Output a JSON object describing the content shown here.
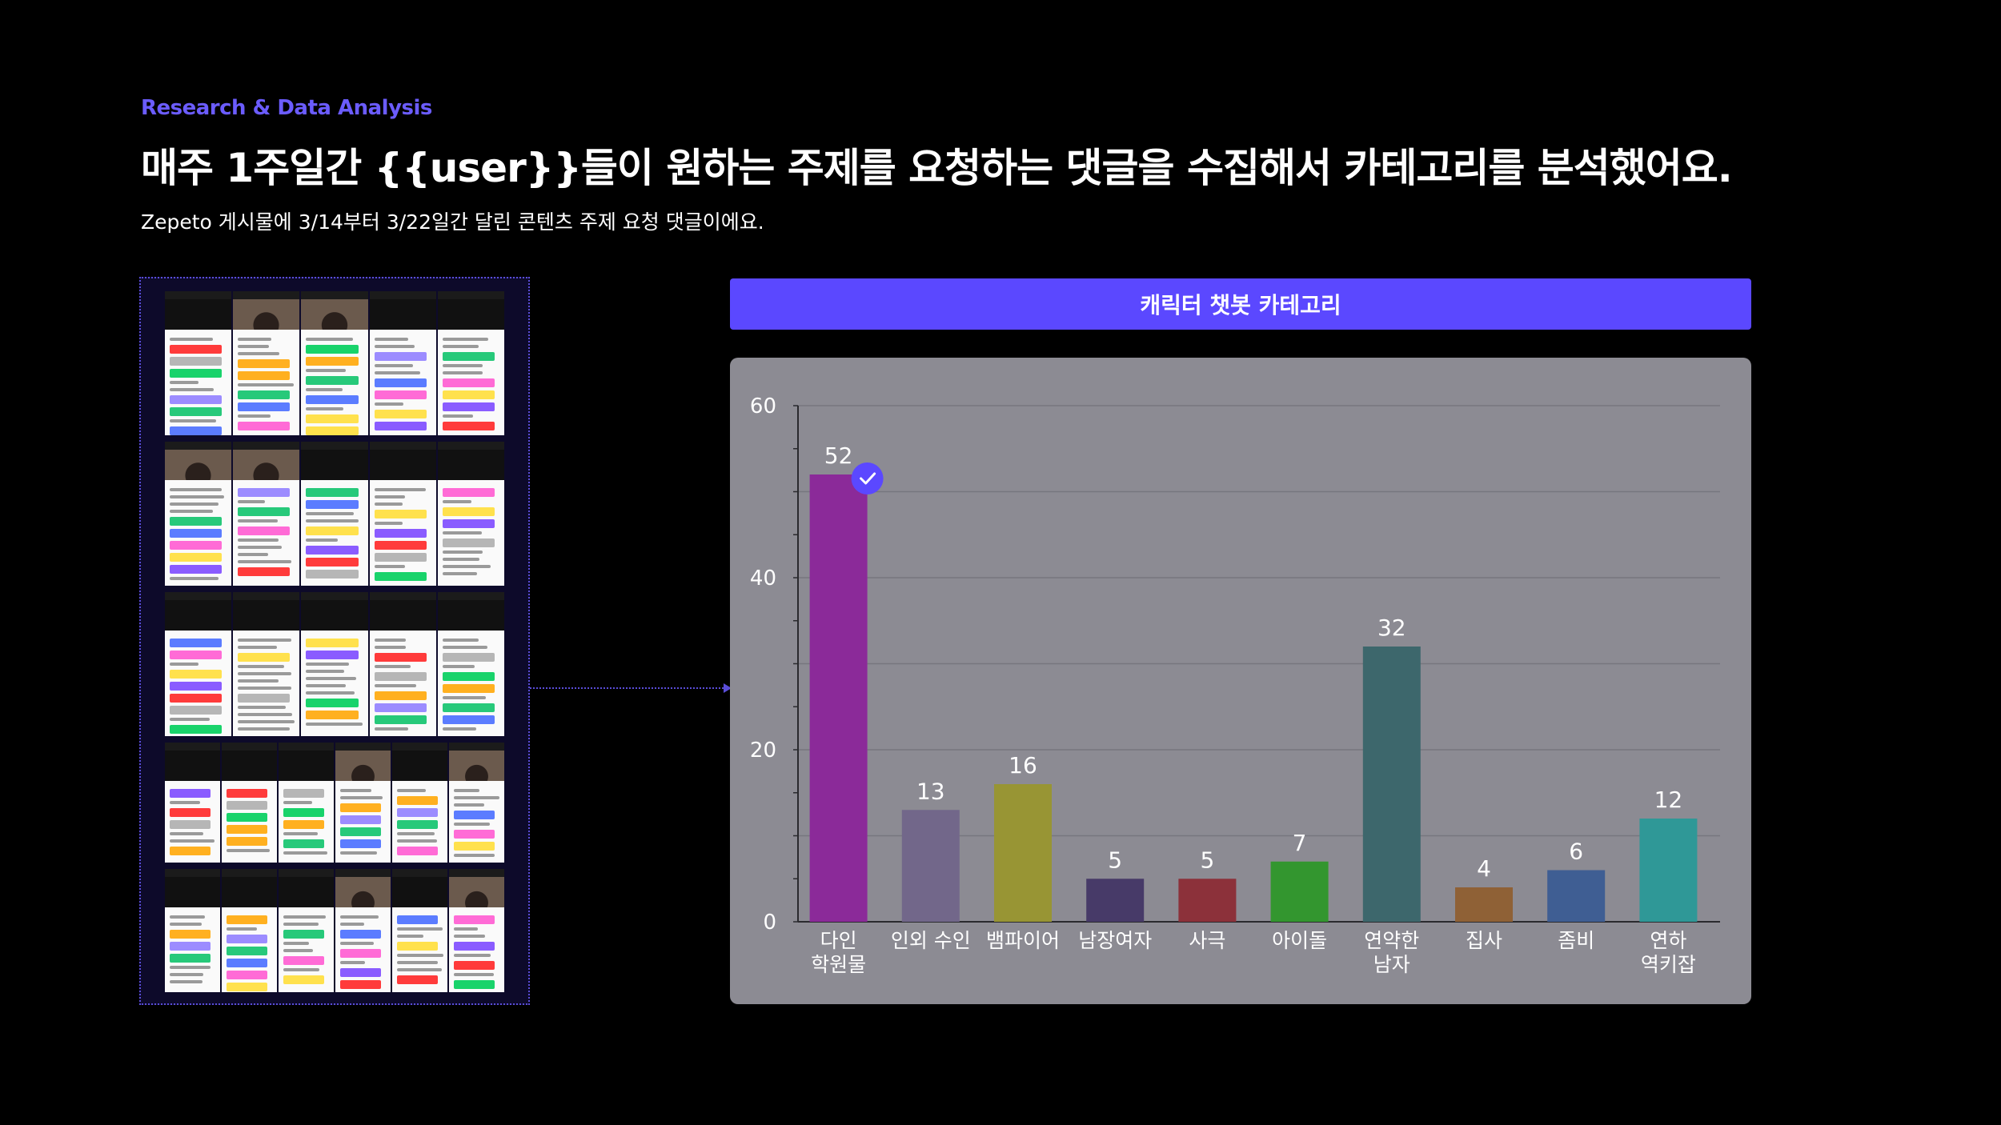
{
  "page": {
    "eyebrow": "Research & Data Analysis",
    "headline": "매주 1주일간 {{user}}들이 원하는 주제를 요청하는 댓글을 수집해서 카테고리를 분석했어요.",
    "subline": "Zepeto 게시물에 3/14부터 3/22일간 달린 콘텐츠 주제 요청 댓글이에요."
  },
  "chart_header": "캐릭터 챗봇 카테고리",
  "colors": {
    "background": "#000000",
    "accent": "#5b48ff",
    "eyebrow": "#6b5cff",
    "panel": "#8c8b93"
  },
  "chart_data": {
    "type": "bar",
    "title": "캐릭터 챗봇 카테고리",
    "xlabel": "",
    "ylabel": "",
    "ylim": [
      0,
      60
    ],
    "y_ticks": [
      0,
      20,
      40,
      60
    ],
    "grid": true,
    "legend": "none",
    "categories": [
      [
        "다인",
        "학원물"
      ],
      [
        "인외 수인"
      ],
      [
        "뱀파이어"
      ],
      [
        "남장여자"
      ],
      [
        "사극"
      ],
      [
        "아이돌"
      ],
      [
        "연약한",
        "남자"
      ],
      [
        "집사"
      ],
      [
        "좀비"
      ],
      [
        "연하",
        "역키잡"
      ]
    ],
    "values": [
      52,
      13,
      16,
      5,
      5,
      7,
      32,
      4,
      6,
      12
    ],
    "bar_colors": [
      "#8b2a99",
      "#72678a",
      "#989534",
      "#473a68",
      "#8c313a",
      "#33962f",
      "#3d676c",
      "#8f6136",
      "#3f5e93",
      "#2f9897"
    ],
    "highlight": {
      "index": 0,
      "icon": "check-circle-icon",
      "color": "#5b48ff"
    }
  }
}
